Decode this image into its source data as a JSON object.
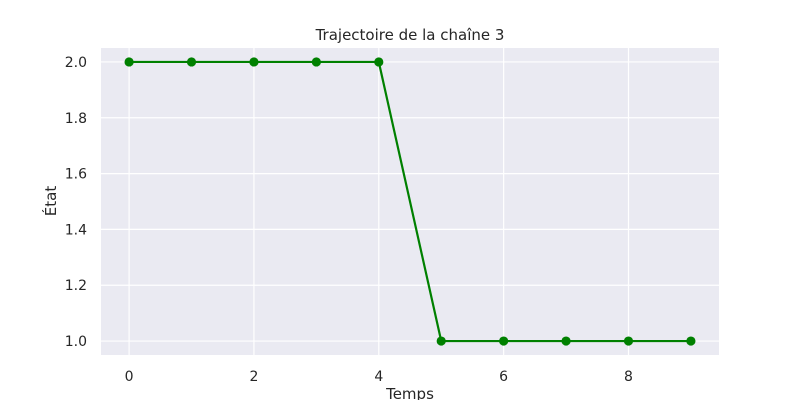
{
  "chart_data": {
    "type": "line",
    "title": "Trajectoire de la chaîne 3",
    "xlabel": "Temps",
    "ylabel": "État",
    "x": [
      0,
      1,
      2,
      3,
      4,
      5,
      6,
      7,
      8,
      9
    ],
    "series": [
      {
        "values": [
          2.0,
          2.0,
          2.0,
          2.0,
          2.0,
          1.0,
          1.0,
          1.0,
          1.0,
          1.0
        ],
        "color": "#008000",
        "marker": "circle"
      }
    ],
    "xlim": [
      -0.45,
      9.45
    ],
    "ylim": [
      0.95,
      2.05
    ],
    "xticks": [
      0,
      2,
      4,
      6,
      8
    ],
    "xtick_labels": [
      "0",
      "2",
      "4",
      "6",
      "8"
    ],
    "yticks": [
      1.0,
      1.2,
      1.4,
      1.6,
      1.8,
      2.0
    ],
    "ytick_labels": [
      "1.0",
      "1.2",
      "1.4",
      "1.6",
      "1.8",
      "2.0"
    ],
    "grid": true,
    "background": "#eaeaf2",
    "grid_color": "#ffffff",
    "legend": false
  }
}
